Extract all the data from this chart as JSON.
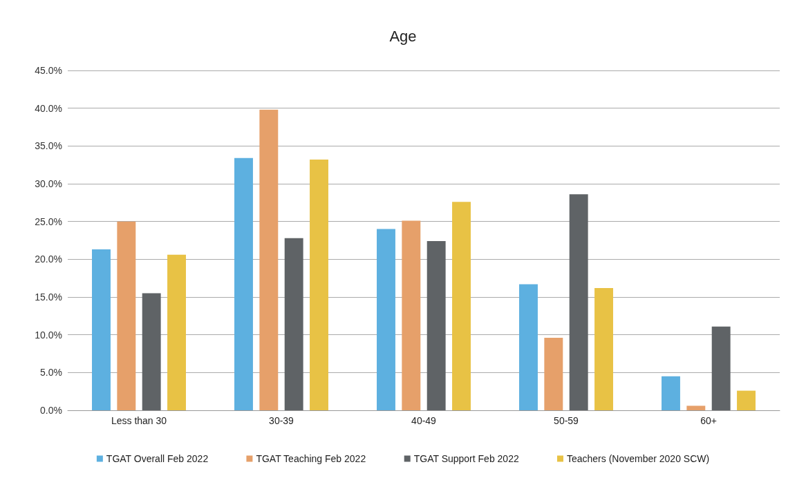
{
  "chart_data": {
    "type": "bar",
    "title": "Age",
    "categories": [
      "Less than 30",
      "30-39",
      "40-49",
      "50-59",
      "60+"
    ],
    "series": [
      {
        "name": "TGAT Overall Feb 2022",
        "color": "#5db0e0",
        "values": [
          21.3,
          33.4,
          24.0,
          16.7,
          4.5
        ]
      },
      {
        "name": "TGAT Teaching Feb 2022",
        "color": "#e6a06a",
        "values": [
          25.0,
          39.8,
          25.1,
          9.6,
          0.6
        ]
      },
      {
        "name": "TGAT Support Feb 2022",
        "color": "#5f6366",
        "values": [
          15.5,
          22.8,
          22.4,
          28.6,
          11.1
        ]
      },
      {
        "name": "Teachers (November 2020 SCW)",
        "color": "#e8c245",
        "values": [
          20.6,
          33.2,
          27.6,
          16.2,
          2.6
        ]
      }
    ],
    "ylim": [
      0,
      45
    ],
    "yticks": [
      {
        "value": 0,
        "label": "0.0%"
      },
      {
        "value": 5,
        "label": "5.0%"
      },
      {
        "value": 10,
        "label": "10.0%"
      },
      {
        "value": 15,
        "label": "15.0%"
      },
      {
        "value": 20,
        "label": "20.0%"
      },
      {
        "value": 25,
        "label": "25.0%"
      },
      {
        "value": 30,
        "label": "30.0%"
      },
      {
        "value": 35,
        "label": "35.0%"
      },
      {
        "value": 40,
        "label": "40.0%"
      },
      {
        "value": 45,
        "label": "45.0%"
      }
    ],
    "grid": "y",
    "legend": "bottom"
  }
}
